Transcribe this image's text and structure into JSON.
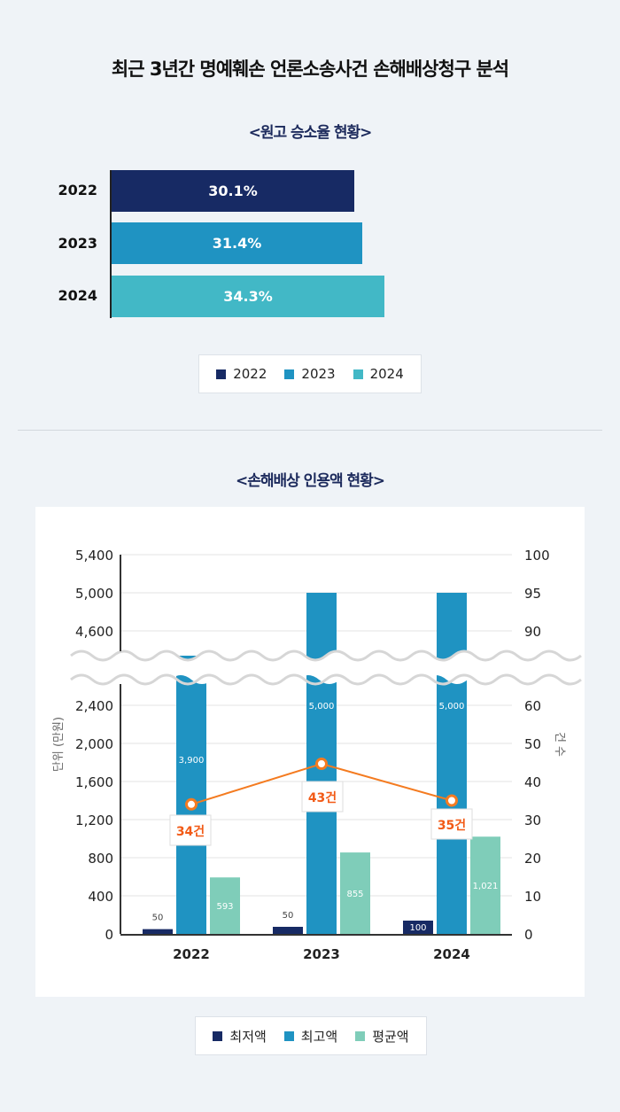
{
  "title": "최근 3년간 명예훼손 언론소송사건 손해배상청구 분석",
  "win_rate": {
    "subtitle": "<원고 승소율 현황>",
    "bars": [
      {
        "year": "2022",
        "value": 30.1,
        "label": "30.1%",
        "color": "#172a64"
      },
      {
        "year": "2023",
        "value": 31.4,
        "label": "31.4%",
        "color": "#1f93c2"
      },
      {
        "year": "2024",
        "value": 34.3,
        "label": "34.3%",
        "color": "#42b8c6"
      }
    ],
    "legend": [
      "2022",
      "2023",
      "2024"
    ]
  },
  "damages": {
    "subtitle": "<손해배상 인용액 현황>",
    "legend": [
      "최저액",
      "최고액",
      "평균액"
    ]
  },
  "chart_data": [
    {
      "type": "bar",
      "title": "<원고 승소율 현황>",
      "categories": [
        "2022",
        "2023",
        "2024"
      ],
      "values": [
        30.1,
        31.4,
        34.3
      ],
      "unit": "%"
    },
    {
      "type": "bar",
      "title": "<손해배상 인용액 현황>",
      "categories": [
        "2022",
        "2023",
        "2024"
      ],
      "series": [
        {
          "name": "최저액",
          "values": [
            50,
            50,
            100
          ],
          "labels": [
            "50",
            "50",
            "100"
          ],
          "color": "#172a64"
        },
        {
          "name": "최고액",
          "values": [
            3900,
            5000,
            5000
          ],
          "labels": [
            "3,900",
            "5,000",
            "5,000"
          ],
          "color": "#1f93c2"
        },
        {
          "name": "평균액",
          "values": [
            593,
            855,
            1021
          ],
          "labels": [
            "593",
            "855",
            "1,021"
          ],
          "color": "#7fcdb9"
        }
      ],
      "line_series": {
        "name": "건 수",
        "values": [
          34,
          43,
          35
        ],
        "labels": [
          "34건",
          "43건",
          "35건"
        ],
        "color": "#f47b20"
      },
      "ylabel": "단위 (만원)",
      "y2label": "건 수",
      "yticks_lower": [
        "0",
        "400",
        "800",
        "1,200",
        "1,600",
        "2,000",
        "2,400"
      ],
      "yticks_upper": [
        "4,600",
        "5,000",
        "5,400"
      ],
      "y2ticks_lower": [
        "0",
        "10",
        "20",
        "30",
        "40",
        "50",
        "60"
      ],
      "y2ticks_upper": [
        "90",
        "95",
        "100"
      ],
      "axis_break": true
    }
  ]
}
